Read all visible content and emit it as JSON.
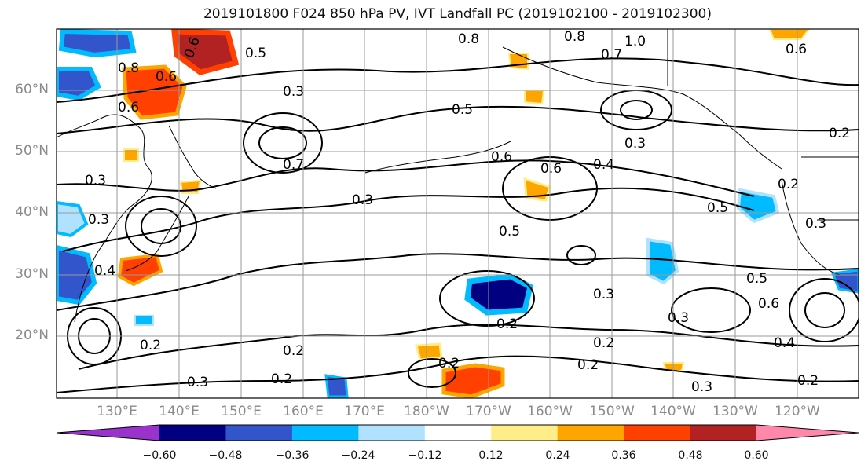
{
  "title": "2019101800 F024 850 hPa PV, IVT Landfall PC (2019102100 - 2019102300)",
  "map": {
    "lon_range": [
      "120°E",
      "125°W"
    ],
    "lat_range": [
      10,
      70
    ],
    "grid": true,
    "latitude_labels": [
      "60°N",
      "50°N",
      "40°N",
      "30°N",
      "20°N"
    ],
    "longitude_labels": [
      "130°E",
      "140°E",
      "150°E",
      "160°E",
      "170°E",
      "180°W",
      "170°W",
      "160°W",
      "150°W",
      "140°W",
      "130°W",
      "120°W"
    ],
    "contour_labels": [
      "0.8",
      "0.8",
      "1.0",
      "0.6",
      "0.8",
      "0.6",
      "0.6",
      "0.5",
      "0.3",
      "0.5",
      "0.3",
      "0.7",
      "0.6",
      "0.6",
      "0.4",
      "0.3",
      "0.2",
      "0.3",
      "0.3",
      "0.5",
      "0.5",
      "0.2",
      "0.4",
      "0.3",
      "0.5",
      "0.6",
      "0.3",
      "0.2",
      "0.2",
      "0.2",
      "0.3",
      "0.2",
      "0.2",
      "0.2",
      "0.3",
      "0.2",
      "0.4",
      "0.3",
      "0.2",
      "0.6",
      "0.7"
    ],
    "land_colors": {
      "line": "#000000",
      "grid": "#9a9a9a"
    }
  },
  "colorbar": {
    "tick_labels": [
      "−0.60",
      "−0.48",
      "−0.36",
      "−0.24",
      "−0.12",
      "0.12",
      "0.24",
      "0.36",
      "0.48",
      "0.60"
    ],
    "colors": [
      "#9933cc",
      "#000080",
      "#3355cc",
      "#00bbff",
      "#b0e2ff",
      "#ffffff",
      "#ffee88",
      "#ffa500",
      "#ff4000",
      "#b22222",
      "#ff88aa"
    ]
  }
}
